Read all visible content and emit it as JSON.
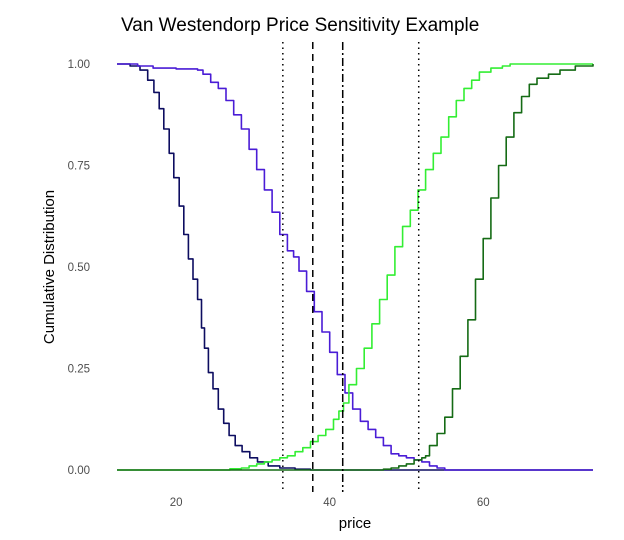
{
  "chart_data": {
    "type": "line",
    "title": "Van Westendorp Price Sensitivity Example",
    "xlabel": "price",
    "ylabel": "Cumulative Distribution",
    "xlim": [
      12.3,
      74.3
    ],
    "ylim": [
      0,
      1
    ],
    "x_ticks": [
      20,
      40,
      60
    ],
    "x_tick_labels": [
      "20",
      "40",
      "60"
    ],
    "y_ticks": [
      0,
      0.25,
      0.5,
      0.75,
      1
    ],
    "y_tick_labels": [
      "0.00",
      "0.25",
      "0.50",
      "0.75",
      "1.00"
    ],
    "grid": false,
    "legend": "none",
    "series": [
      {
        "color": "#0d0d60",
        "step": true,
        "points": [
          [
            12.3,
            1.0
          ],
          [
            14.0,
            0.995
          ],
          [
            15.3,
            0.985
          ],
          [
            16.3,
            0.96
          ],
          [
            17.1,
            0.93
          ],
          [
            17.8,
            0.89
          ],
          [
            18.4,
            0.84
          ],
          [
            19.1,
            0.78
          ],
          [
            19.7,
            0.72
          ],
          [
            20.4,
            0.65
          ],
          [
            21.0,
            0.58
          ],
          [
            21.6,
            0.52
          ],
          [
            22.2,
            0.47
          ],
          [
            22.8,
            0.42
          ],
          [
            23.3,
            0.35
          ],
          [
            23.7,
            0.3
          ],
          [
            24.2,
            0.24
          ],
          [
            24.8,
            0.2
          ],
          [
            25.5,
            0.15
          ],
          [
            26.2,
            0.115
          ],
          [
            26.9,
            0.085
          ],
          [
            27.7,
            0.06
          ],
          [
            28.6,
            0.045
          ],
          [
            29.6,
            0.03
          ],
          [
            30.6,
            0.02
          ],
          [
            32.0,
            0.01
          ],
          [
            33.5,
            0.005
          ],
          [
            35.5,
            0.002
          ],
          [
            37.5,
            0.0
          ],
          [
            74.3,
            0.0
          ]
        ]
      },
      {
        "color": "#4a1cd6",
        "step": true,
        "points": [
          [
            12.3,
            1.0
          ],
          [
            15.0,
            0.995
          ],
          [
            17.0,
            0.99
          ],
          [
            20.0,
            0.988
          ],
          [
            22.8,
            0.985
          ],
          [
            23.5,
            0.975
          ],
          [
            24.5,
            0.955
          ],
          [
            25.5,
            0.94
          ],
          [
            26.5,
            0.91
          ],
          [
            27.5,
            0.875
          ],
          [
            28.5,
            0.84
          ],
          [
            29.5,
            0.79
          ],
          [
            30.5,
            0.74
          ],
          [
            31.5,
            0.69
          ],
          [
            32.5,
            0.635
          ],
          [
            33.5,
            0.58
          ],
          [
            34.5,
            0.54
          ],
          [
            35.3,
            0.525
          ],
          [
            36.0,
            0.49
          ],
          [
            37.0,
            0.44
          ],
          [
            38.0,
            0.39
          ],
          [
            39.0,
            0.34
          ],
          [
            40.0,
            0.29
          ],
          [
            41.0,
            0.235
          ],
          [
            42.0,
            0.19
          ],
          [
            43.0,
            0.15
          ],
          [
            44.0,
            0.12
          ],
          [
            45.0,
            0.1
          ],
          [
            46.0,
            0.08
          ],
          [
            47.0,
            0.06
          ],
          [
            48.0,
            0.04
          ],
          [
            49.0,
            0.035
          ],
          [
            50.0,
            0.03
          ],
          [
            51.0,
            0.025
          ],
          [
            52.0,
            0.02
          ],
          [
            53.0,
            0.01
          ],
          [
            54.0,
            0.005
          ],
          [
            55.0,
            0.0
          ],
          [
            74.3,
            0.0
          ]
        ]
      },
      {
        "color": "#33ee33",
        "step": true,
        "points": [
          [
            12.3,
            0.0
          ],
          [
            26.0,
            0.0
          ],
          [
            27.0,
            0.003
          ],
          [
            28.5,
            0.005
          ],
          [
            29.5,
            0.01
          ],
          [
            30.5,
            0.015
          ],
          [
            31.5,
            0.02
          ],
          [
            32.5,
            0.025
          ],
          [
            33.5,
            0.03
          ],
          [
            34.5,
            0.035
          ],
          [
            35.5,
            0.045
          ],
          [
            36.5,
            0.055
          ],
          [
            37.5,
            0.07
          ],
          [
            38.5,
            0.085
          ],
          [
            39.5,
            0.1
          ],
          [
            40.5,
            0.125
          ],
          [
            41.2,
            0.145
          ],
          [
            41.8,
            0.165
          ],
          [
            42.5,
            0.21
          ],
          [
            43.5,
            0.25
          ],
          [
            44.5,
            0.3
          ],
          [
            45.5,
            0.36
          ],
          [
            46.5,
            0.42
          ],
          [
            47.5,
            0.48
          ],
          [
            48.5,
            0.55
          ],
          [
            49.5,
            0.6
          ],
          [
            50.5,
            0.64
          ],
          [
            51.5,
            0.69
          ],
          [
            52.5,
            0.74
          ],
          [
            53.5,
            0.78
          ],
          [
            54.5,
            0.82
          ],
          [
            55.5,
            0.87
          ],
          [
            56.5,
            0.91
          ],
          [
            57.5,
            0.94
          ],
          [
            58.5,
            0.96
          ],
          [
            59.5,
            0.98
          ],
          [
            61.0,
            0.99
          ],
          [
            62.5,
            0.995
          ],
          [
            63.5,
            1.0
          ],
          [
            74.3,
            1.0
          ]
        ]
      },
      {
        "color": "#156b15",
        "step": true,
        "points": [
          [
            12.3,
            0.0
          ],
          [
            46.0,
            0.0
          ],
          [
            47.0,
            0.002
          ],
          [
            48.0,
            0.005
          ],
          [
            49.0,
            0.01
          ],
          [
            50.0,
            0.015
          ],
          [
            51.0,
            0.025
          ],
          [
            52.0,
            0.03
          ],
          [
            52.5,
            0.035
          ],
          [
            53.0,
            0.06
          ],
          [
            54.0,
            0.09
          ],
          [
            55.0,
            0.13
          ],
          [
            56.0,
            0.2
          ],
          [
            57.0,
            0.28
          ],
          [
            58.0,
            0.37
          ],
          [
            59.0,
            0.47
          ],
          [
            60.0,
            0.57
          ],
          [
            61.0,
            0.67
          ],
          [
            62.0,
            0.75
          ],
          [
            63.0,
            0.82
          ],
          [
            64.0,
            0.88
          ],
          [
            65.0,
            0.92
          ],
          [
            66.0,
            0.95
          ],
          [
            67.0,
            0.965
          ],
          [
            68.5,
            0.975
          ],
          [
            70.0,
            0.985
          ],
          [
            72.0,
            0.995
          ],
          [
            74.3,
            1.0
          ]
        ]
      }
    ],
    "vlines": [
      {
        "x": 33.9,
        "style": "dotted"
      },
      {
        "x": 37.8,
        "style": "dashed"
      },
      {
        "x": 41.7,
        "style": "dashdot"
      },
      {
        "x": 51.6,
        "style": "dotted"
      }
    ]
  }
}
